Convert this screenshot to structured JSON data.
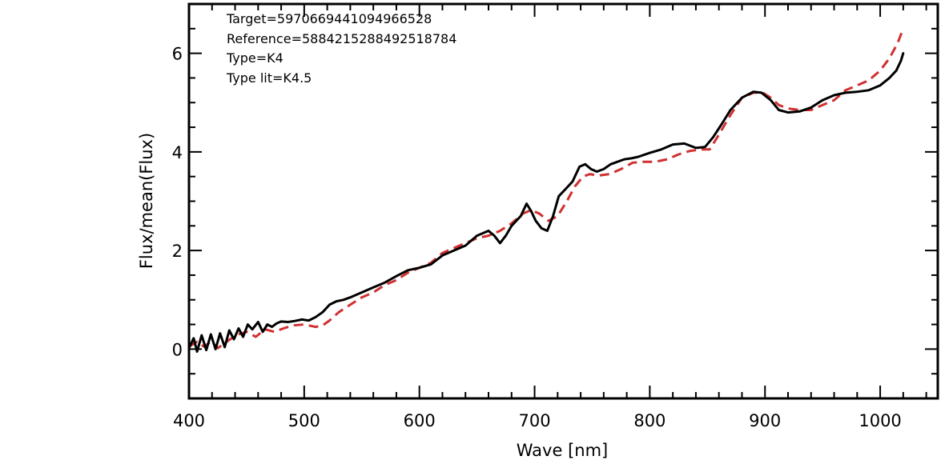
{
  "chart_data": {
    "type": "line",
    "xlabel": "Wave [nm]",
    "ylabel": "Flux/mean(Flux)",
    "xlim": [
      400,
      1050
    ],
    "ylim": [
      -1,
      7
    ],
    "xticks": [
      400,
      500,
      600,
      700,
      800,
      900,
      1000
    ],
    "xtick_labels": [
      "400",
      "500",
      "600",
      "700",
      "800",
      "900",
      "1000"
    ],
    "yticks": [
      0,
      2,
      4,
      6
    ],
    "ytick_labels": [
      "0",
      "2",
      "4",
      "6"
    ],
    "grid": false,
    "annotations": [
      "Target=5970669441094966528",
      "Reference=5884215288492518784",
      "Type=K4",
      "Type lit=K4.5"
    ],
    "series": [
      {
        "color": "#000000",
        "style": "solid",
        "x": [
          400,
          404,
          407,
          411,
          415,
          419,
          423,
          427,
          431,
          435,
          439,
          443,
          447,
          451,
          455,
          460,
          464,
          468,
          472,
          476,
          480,
          486,
          492,
          498,
          504,
          510,
          516,
          522,
          528,
          534,
          540,
          550,
          560,
          570,
          580,
          590,
          600,
          610,
          620,
          630,
          640,
          650,
          660,
          665,
          670,
          675,
          680,
          688,
          693,
          697,
          701,
          706,
          711,
          716,
          721,
          727,
          733,
          739,
          744,
          749,
          754,
          760,
          766,
          772,
          778,
          784,
          790,
          800,
          810,
          820,
          830,
          840,
          848,
          855,
          862,
          870,
          880,
          890,
          897,
          905,
          912,
          920,
          930,
          940,
          950,
          960,
          970,
          980,
          990,
          1000,
          1008,
          1014,
          1018,
          1020
        ],
        "y": [
          0.02,
          0.22,
          -0.05,
          0.28,
          -0.02,
          0.3,
          0.0,
          0.32,
          0.04,
          0.38,
          0.2,
          0.42,
          0.25,
          0.5,
          0.4,
          0.55,
          0.35,
          0.5,
          0.45,
          0.52,
          0.56,
          0.55,
          0.57,
          0.6,
          0.58,
          0.65,
          0.75,
          0.9,
          0.97,
          1.0,
          1.05,
          1.15,
          1.25,
          1.35,
          1.48,
          1.6,
          1.65,
          1.72,
          1.9,
          2.0,
          2.1,
          2.3,
          2.4,
          2.3,
          2.15,
          2.3,
          2.5,
          2.7,
          2.95,
          2.8,
          2.6,
          2.45,
          2.4,
          2.7,
          3.1,
          3.25,
          3.4,
          3.7,
          3.75,
          3.65,
          3.6,
          3.65,
          3.75,
          3.8,
          3.85,
          3.87,
          3.9,
          3.98,
          4.05,
          4.15,
          4.17,
          4.08,
          4.1,
          4.3,
          4.55,
          4.85,
          5.1,
          5.22,
          5.2,
          5.05,
          4.85,
          4.8,
          4.82,
          4.9,
          5.05,
          5.15,
          5.2,
          5.22,
          5.25,
          5.35,
          5.5,
          5.65,
          5.85,
          6.0
        ]
      },
      {
        "color": "#d03030",
        "style": "dashed",
        "x": [
          400,
          407,
          413,
          419,
          425,
          431,
          437,
          443,
          450,
          458,
          466,
          474,
          482,
          490,
          500,
          510,
          516,
          522,
          530,
          540,
          550,
          560,
          570,
          580,
          590,
          600,
          610,
          620,
          630,
          640,
          650,
          660,
          670,
          680,
          690,
          697,
          704,
          712,
          720,
          728,
          735,
          742,
          748,
          755,
          765,
          775,
          785,
          795,
          805,
          815,
          825,
          835,
          845,
          852,
          860,
          870,
          880,
          890,
          898,
          905,
          912,
          920,
          930,
          940,
          950,
          960,
          970,
          980,
          990,
          1000,
          1008,
          1015,
          1020
        ],
        "y": [
          0.05,
          0.15,
          0.05,
          0.15,
          0.02,
          0.12,
          0.22,
          0.3,
          0.35,
          0.25,
          0.4,
          0.35,
          0.42,
          0.48,
          0.5,
          0.45,
          0.48,
          0.58,
          0.75,
          0.9,
          1.05,
          1.15,
          1.3,
          1.4,
          1.55,
          1.65,
          1.75,
          1.95,
          2.05,
          2.15,
          2.25,
          2.3,
          2.4,
          2.55,
          2.75,
          2.82,
          2.75,
          2.6,
          2.7,
          3.0,
          3.3,
          3.5,
          3.55,
          3.52,
          3.55,
          3.65,
          3.78,
          3.8,
          3.8,
          3.85,
          3.95,
          4.02,
          4.05,
          4.05,
          4.35,
          4.75,
          5.1,
          5.2,
          5.2,
          5.1,
          4.95,
          4.88,
          4.85,
          4.85,
          4.95,
          5.05,
          5.25,
          5.35,
          5.45,
          5.65,
          5.9,
          6.2,
          6.5
        ]
      }
    ]
  }
}
